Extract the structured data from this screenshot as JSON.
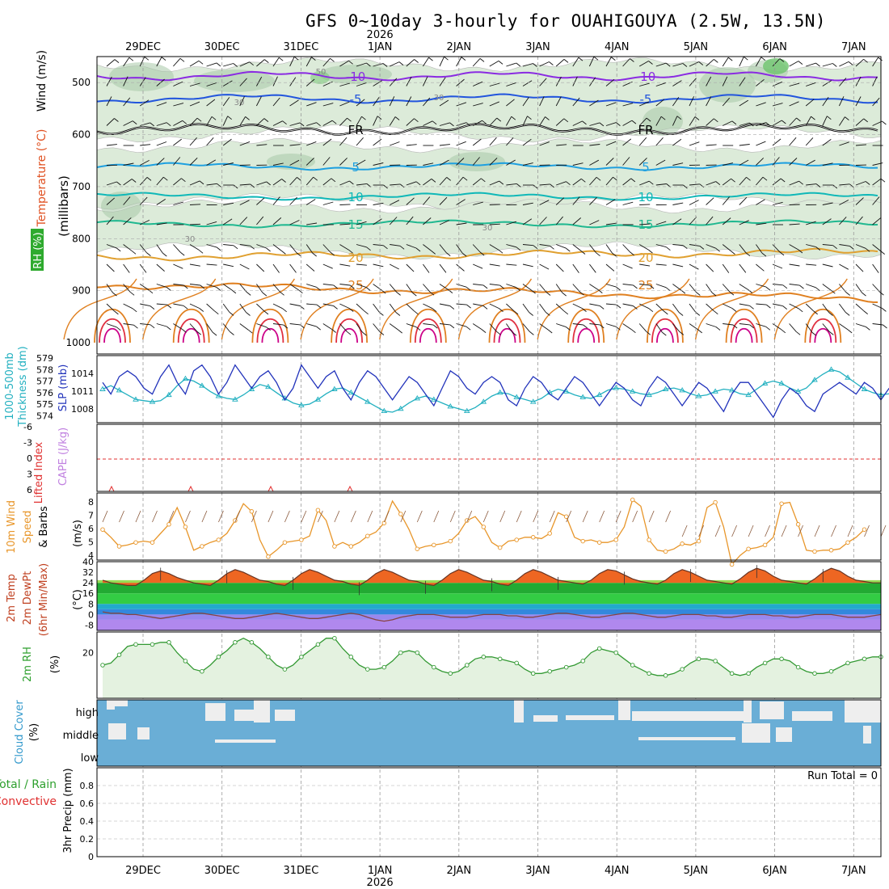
{
  "title": "GFS 0~10day 3-hourly for OUAHIGOUYA (2.5W, 13.5N)",
  "colors": {
    "rh_shade": "#dcebd9",
    "rh_dark": "#a8c8a8",
    "rh_green": "#6dc46d",
    "sfc_blue": "#2233bb",
    "thick_cyan": "#22b0c0",
    "wind_orange": "#e8962a",
    "rh2m_green": "#339933",
    "cloud_blue": "#6aaed6",
    "cloud_gap": "#eeeeee",
    "lifted_red": "#e03030",
    "cape_purple": "#c080e0"
  },
  "dates": {
    "year": "2026",
    "labels": [
      "29DEC",
      "30DEC",
      "31DEC",
      "1JAN",
      "2JAN",
      "3JAN",
      "4JAN",
      "5JAN",
      "6JAN",
      "7JAN"
    ]
  },
  "panels": {
    "upper": {
      "ylabel_wind": "Wind (m/s)",
      "ylabel_temp": "Temperature (°C)",
      "ylabel_rh": "RH (%)",
      "ylabel_units": "(millibars)",
      "yticks": [
        "500",
        "600",
        "700",
        "800",
        "900",
        "1000"
      ],
      "isotherms": [
        {
          "label": "-10",
          "color": "#8a2be2"
        },
        {
          "label": "-5",
          "color": "#2255dd"
        },
        {
          "label": "FR",
          "color": "#000000"
        },
        {
          "label": "5",
          "color": "#1ea0e0"
        },
        {
          "label": "10",
          "color": "#10b8b8"
        },
        {
          "label": "15",
          "color": "#20b890"
        },
        {
          "label": "20",
          "color": "#e0a030"
        },
        {
          "label": "25",
          "color": "#e08020"
        }
      ],
      "rh_labels": [
        "30",
        "50"
      ]
    },
    "slp": {
      "ylabel_left": "1000-500mb",
      "ylabel_left2": "Thickness (dm)",
      "ylabel_right": "SLP (mb)",
      "yticks_thick": [
        "579",
        "578",
        "577",
        "576",
        "575",
        "574"
      ],
      "yticks_slp": [
        "1014",
        "1011",
        "1008"
      ]
    },
    "cape": {
      "ylabel_li": "Lifted Index",
      "ylabel_cape": "CAPE (J/kg)",
      "yticks": [
        "-6",
        "-3",
        "0",
        "3",
        "6"
      ]
    },
    "wind10": {
      "ylabel1": "10m Wind",
      "ylabel2": "Speed",
      "ylabel3": "& Barbs",
      "ylabel_units": "(m/s)",
      "yticks": [
        "8",
        "7",
        "6",
        "5",
        "4"
      ]
    },
    "temp": {
      "ylabel1": "2m Temp",
      "ylabel2": "2m DewPt",
      "ylabel3": "(6hr Min/Max)",
      "ylabel_units": "(°C)",
      "yticks": [
        "40",
        "32",
        "24",
        "16",
        "8",
        "0",
        "-8"
      ]
    },
    "rh2m": {
      "ylabel": "2m RH",
      "ylabel_units": "(%)",
      "yticks": [
        "20"
      ]
    },
    "cloud": {
      "ylabel": "Cloud Cover",
      "ylabel_units": "(%)",
      "levels": [
        "high",
        "middle",
        "low"
      ]
    },
    "precip": {
      "ylabel1": "Total / Rain",
      "ylabel2": "Convective",
      "ylabel3": "3hr Precip (mm)",
      "yticks": [
        "0.8",
        "0.6",
        "0.4",
        "0.2",
        "0"
      ],
      "run_total": "Run Total = 0"
    }
  },
  "chart_data": [
    {
      "type": "line",
      "name": "SLP",
      "units": "mb",
      "values": [
        1012,
        1010,
        1013,
        1014,
        1013,
        1011,
        1010,
        1013,
        1015,
        1012,
        1010,
        1014,
        1015,
        1013,
        1010,
        1012,
        1015,
        1013,
        1011,
        1013,
        1014,
        1012,
        1009,
        1011,
        1015,
        1013,
        1011,
        1013,
        1014,
        1011,
        1009,
        1012,
        1014,
        1013,
        1011,
        1009,
        1011,
        1013,
        1012,
        1010,
        1008,
        1011,
        1014,
        1013,
        1011,
        1010,
        1012,
        1013,
        1012,
        1009,
        1008,
        1011,
        1013,
        1012,
        1010,
        1009,
        1011,
        1013,
        1012,
        1010,
        1008,
        1010,
        1012,
        1011,
        1009,
        1008,
        1011,
        1013,
        1012,
        1010,
        1008,
        1010,
        1012,
        1011,
        1009,
        1007,
        1010,
        1012,
        1012,
        1010,
        1008,
        1006,
        1009,
        1011,
        1010,
        1008,
        1007,
        1010,
        1011,
        1012,
        1011,
        1010,
        1012,
        1011,
        1009,
        1011
      ]
    },
    {
      "type": "line",
      "name": "Thickness",
      "units": "dm",
      "values": [
        576.5,
        576.8,
        576.4,
        576.0,
        575.6,
        575.5,
        575.4,
        575.5,
        576.0,
        576.8,
        577.4,
        577.2,
        576.8,
        576.3,
        575.9,
        575.7,
        575.6,
        576.0,
        576.5,
        576.9,
        576.7,
        576.2,
        575.7,
        575.3,
        575.1,
        575.2,
        575.6,
        576.1,
        576.5,
        576.6,
        576.2,
        575.8,
        575.4,
        575.0,
        574.6,
        574.5,
        574.8,
        575.3,
        575.7,
        575.9,
        575.6,
        575.3,
        575.0,
        574.8,
        574.6,
        574.9,
        575.4,
        575.9,
        576.2,
        576.1,
        575.8,
        575.6,
        575.4,
        575.7,
        576.2,
        576.5,
        576.3,
        576.0,
        575.8,
        575.7,
        576.0,
        576.4,
        576.6,
        576.5,
        576.3,
        576.1,
        576.0,
        576.2,
        576.5,
        576.6,
        576.4,
        576.1,
        575.9,
        576.0,
        576.3,
        576.5,
        576.4,
        576.1,
        576.0,
        576.5,
        577.0,
        577.2,
        577.0,
        576.6,
        576.3,
        576.6,
        577.3,
        577.8,
        578.2,
        578.0,
        577.5,
        577.0,
        576.5,
        576.2,
        576.0,
        576.1
      ]
    },
    {
      "type": "line",
      "name": "10m Wind Speed",
      "units": "m/s",
      "values": [
        5.8,
        5.2,
        4.5,
        4.6,
        4.8,
        4.9,
        4.8,
        5.5,
        6.2,
        7.5,
        6.0,
        4.2,
        4.5,
        4.8,
        5.0,
        5.5,
        6.5,
        7.8,
        7.2,
        5.0,
        3.7,
        4.2,
        4.8,
        4.9,
        5.0,
        5.3,
        7.3,
        6.5,
        4.5,
        4.8,
        4.5,
        4.8,
        5.3,
        5.6,
        6.3,
        8.0,
        7.0,
        5.8,
        4.3,
        4.5,
        4.6,
        4.7,
        4.9,
        5.5,
        6.5,
        6.8,
        6.0,
        4.8,
        4.4,
        4.9,
        5.0,
        5.2,
        5.2,
        5.1,
        5.5,
        7.1,
        6.8,
        5.2,
        4.9,
        5.0,
        4.8,
        4.8,
        5.0,
        6.0,
        8.1,
        7.6,
        5.0,
        4.2,
        4.1,
        4.3,
        4.7,
        4.6,
        4.9,
        7.5,
        7.9,
        6.0,
        3.1,
        3.8,
        4.3,
        4.4,
        4.6,
        5.2,
        7.8,
        7.9,
        6.2,
        4.2,
        4.1,
        4.2,
        4.2,
        4.3,
        4.8,
        5.2,
        5.8
      ]
    },
    {
      "type": "line",
      "name": "2m RH",
      "units": "%",
      "values": [
        14,
        15,
        19,
        23,
        24,
        24,
        24,
        25,
        25,
        20,
        16,
        12,
        11,
        14,
        18,
        21,
        25,
        27,
        25,
        22,
        18,
        14,
        12,
        14,
        18,
        21,
        24,
        27,
        27,
        22,
        18,
        14,
        12,
        12,
        13,
        16,
        20,
        21,
        20,
        16,
        13,
        11,
        10,
        11,
        14,
        17,
        18,
        18,
        17,
        16,
        15,
        12,
        10,
        10,
        11,
        12,
        13,
        14,
        16,
        20,
        22,
        21,
        20,
        17,
        14,
        12,
        10,
        9,
        9,
        10,
        12,
        15,
        17,
        17,
        16,
        13,
        10,
        9,
        10,
        13,
        15,
        17,
        17,
        16,
        13,
        11,
        10,
        10,
        11,
        13,
        15,
        16,
        17,
        18,
        18
      ]
    },
    {
      "type": "line",
      "name": "2m Temp",
      "units": "°C",
      "values": [
        26,
        24,
        23,
        22,
        22,
        26,
        31,
        33,
        31,
        28,
        26,
        24,
        23,
        22,
        26,
        31,
        34,
        32,
        29,
        26,
        25,
        23,
        22,
        26,
        31,
        34,
        32,
        29,
        26,
        25,
        23,
        22,
        26,
        31,
        34,
        32,
        29,
        26,
        25,
        23,
        22,
        26,
        31,
        34,
        32,
        29,
        26,
        25,
        23,
        22,
        26,
        31,
        34,
        32,
        29,
        26,
        25,
        24,
        23,
        26,
        31,
        34,
        33,
        30,
        27,
        25,
        24,
        23,
        26,
        31,
        34,
        32,
        29,
        26,
        25,
        24,
        23,
        27,
        32,
        35,
        33,
        29,
        26,
        25,
        24,
        23,
        27,
        32,
        35,
        33,
        29,
        26,
        25,
        24,
        24
      ]
    },
    {
      "type": "line",
      "name": "2m DewPt",
      "units": "°C",
      "values": [
        2,
        1,
        1,
        0,
        0,
        -1,
        -2,
        -3,
        -2,
        -1,
        0,
        1,
        1,
        0,
        -1,
        -2,
        -3,
        -3,
        -2,
        -1,
        0,
        1,
        0,
        -1,
        -2,
        -3,
        -3,
        -2,
        -1,
        0,
        1,
        0,
        -2,
        -4,
        -5,
        -4,
        -2,
        -1,
        0,
        0,
        0,
        -1,
        -2,
        -2,
        -2,
        -1,
        0,
        0,
        0,
        -1,
        -1,
        -2,
        -2,
        -1,
        0,
        1,
        1,
        0,
        -1,
        -2,
        -2,
        -1,
        0,
        1,
        1,
        0,
        -1,
        -2,
        -2,
        -1,
        0,
        0,
        0,
        -1,
        -1,
        -2,
        -2,
        -1,
        0,
        0,
        0,
        -1,
        -1,
        -2,
        -2,
        -1,
        0,
        0,
        0,
        -1,
        -2,
        -2,
        -2,
        -1,
        0
      ]
    }
  ]
}
